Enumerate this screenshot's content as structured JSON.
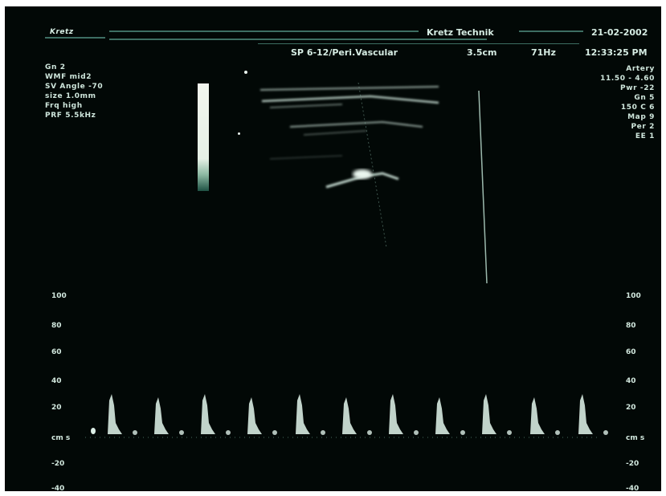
{
  "header": {
    "brand": "Kretz",
    "manufacturer": "Kretz Technik",
    "date": "21-02-2002",
    "probe": "SP 6-12/Peri.Vascular",
    "depth": "3.5cm",
    "frame_rate": "71Hz",
    "time": "12:33:25 PM"
  },
  "left_params": [
    "Gn  2",
    "WMF  mid2",
    "SV Angle  -70",
    "size  1.0mm",
    "Frq high",
    "PRF  5.5kHz"
  ],
  "right_params": [
    "Artery",
    "11.50 - 4.60",
    "Pwr -22",
    "Gn   5",
    "150 C   6",
    "Map   9",
    "Per   2",
    "EE   1"
  ],
  "velocity_axis": {
    "left_labels": [
      "100",
      "80",
      "60",
      "40",
      "20",
      "cm s",
      "-20",
      "-40"
    ],
    "right_labels": [
      "100",
      "80",
      "60",
      "40",
      "20",
      "cm s",
      "-20",
      "-40"
    ]
  },
  "colors": {
    "background": "#020806",
    "text": "#cfe6dc",
    "doppler": "#dcefe6",
    "header_line": "#3d6e62"
  }
}
